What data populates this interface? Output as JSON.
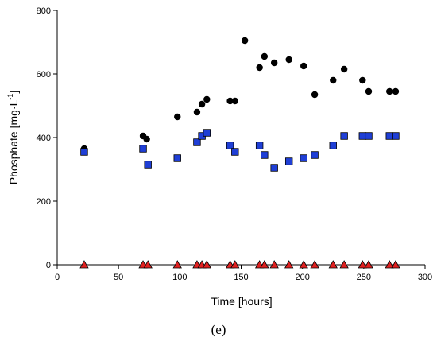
{
  "chart_data": {
    "type": "scatter",
    "xlabel": "Time [hours]",
    "ylabel_main": "Phosphate [mg·L",
    "ylabel_sup": "-1",
    "ylabel_end": "]",
    "xlim": [
      0,
      300
    ],
    "ylim": [
      0,
      800
    ],
    "xticks": [
      "0",
      "50",
      "100",
      "150",
      "200",
      "250",
      "300"
    ],
    "yticks": [
      "0",
      "200",
      "400",
      "600",
      "800"
    ],
    "grid": false,
    "legend": "none",
    "series": [
      {
        "marker": "circle",
        "color": "#000000",
        "points": [
          [
            22,
            365
          ],
          [
            70,
            405
          ],
          [
            73,
            395
          ],
          [
            98,
            465
          ],
          [
            114,
            480
          ],
          [
            118,
            505
          ],
          [
            122,
            520
          ],
          [
            141,
            515
          ],
          [
            145,
            515
          ],
          [
            153,
            705
          ],
          [
            165,
            620
          ],
          [
            169,
            655
          ],
          [
            177,
            635
          ],
          [
            189,
            645
          ],
          [
            201,
            625
          ],
          [
            210,
            535
          ],
          [
            225,
            580
          ],
          [
            234,
            615
          ],
          [
            249,
            580
          ],
          [
            254,
            545
          ],
          [
            271,
            545
          ],
          [
            276,
            545
          ]
        ]
      },
      {
        "marker": "square",
        "color": "#1f3fd6",
        "points": [
          [
            22,
            355
          ],
          [
            70,
            365
          ],
          [
            74,
            315
          ],
          [
            98,
            335
          ],
          [
            114,
            385
          ],
          [
            118,
            405
          ],
          [
            122,
            415
          ],
          [
            141,
            375
          ],
          [
            145,
            355
          ],
          [
            165,
            375
          ],
          [
            169,
            345
          ],
          [
            177,
            305
          ],
          [
            189,
            325
          ],
          [
            201,
            335
          ],
          [
            210,
            345
          ],
          [
            225,
            375
          ],
          [
            234,
            405
          ],
          [
            249,
            405
          ],
          [
            254,
            405
          ],
          [
            271,
            405
          ],
          [
            276,
            405
          ]
        ]
      },
      {
        "marker": "triangle",
        "color": "#e02020",
        "points": [
          [
            22,
            0
          ],
          [
            70,
            0
          ],
          [
            74,
            0
          ],
          [
            98,
            0
          ],
          [
            114,
            0
          ],
          [
            118,
            0
          ],
          [
            122,
            0
          ],
          [
            141,
            0
          ],
          [
            145,
            0
          ],
          [
            165,
            0
          ],
          [
            169,
            0
          ],
          [
            177,
            0
          ],
          [
            189,
            0
          ],
          [
            201,
            0
          ],
          [
            210,
            0
          ],
          [
            225,
            0
          ],
          [
            234,
            0
          ],
          [
            249,
            0
          ],
          [
            254,
            0
          ],
          [
            271,
            0
          ],
          [
            276,
            0
          ]
        ]
      }
    ]
  },
  "caption": "(e)"
}
